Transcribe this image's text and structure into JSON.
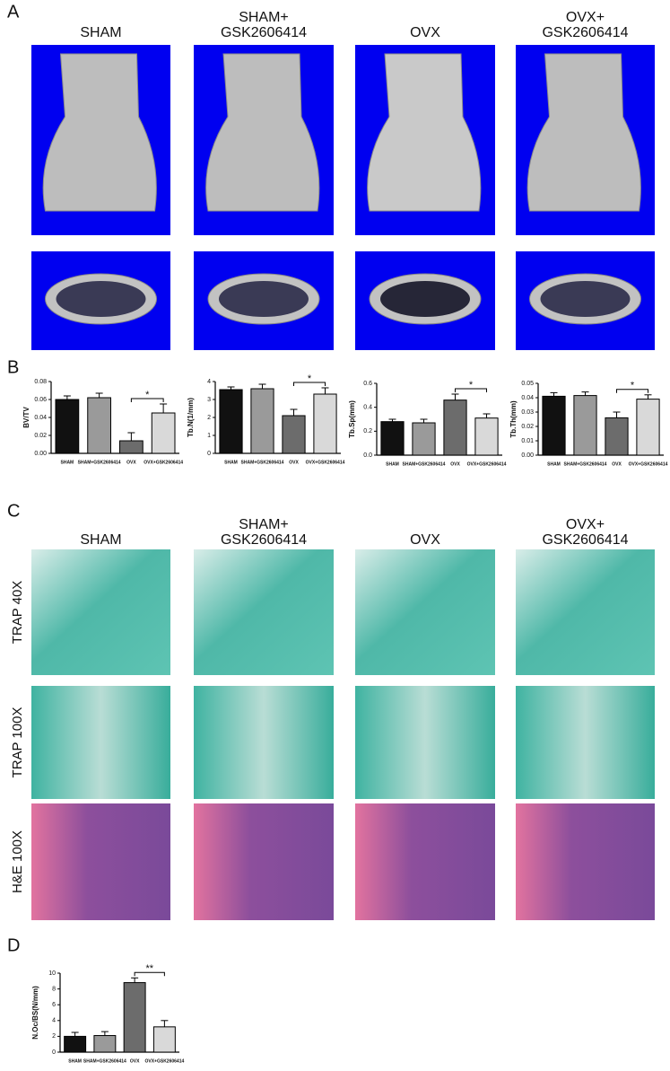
{
  "panel_a": {
    "label": "A",
    "column_titles": [
      [
        "SHAM"
      ],
      [
        "SHAM+",
        "GSK2606414"
      ],
      [
        "OVX"
      ],
      [
        "OVX+",
        "GSK2606414"
      ]
    ]
  },
  "panel_b_label": "B",
  "panel_c": {
    "label": "C",
    "column_titles": [
      [
        "SHAM"
      ],
      [
        "SHAM+",
        "GSK2606414"
      ],
      [
        "OVX"
      ],
      [
        "OVX+",
        "GSK2606414"
      ]
    ],
    "row_labels": [
      "TRAP 40X",
      "TRAP 100X",
      "H&E 100X"
    ]
  },
  "panel_d_label": "D",
  "chart_data": [
    {
      "type": "bar",
      "ylabel": "BV/TV",
      "categories": [
        "SHAM",
        "SHAM+GSK2606414",
        "OVX",
        "OVX+GSK2606414"
      ],
      "values": [
        0.06,
        0.062,
        0.014,
        0.045
      ],
      "errors": [
        0.004,
        0.005,
        0.009,
        0.01
      ],
      "colors": [
        "#111111",
        "#9a9a9a",
        "#6c6c6c",
        "#d9d9d9"
      ],
      "ylim": [
        0,
        0.08
      ],
      "yticks": [
        {
          "value": 0,
          "label": "0.00"
        },
        0.02,
        0.04,
        0.06,
        0.08
      ],
      "significance": "*"
    },
    {
      "type": "bar",
      "ylabel": "Tb.N(1/mm)",
      "categories": [
        "SHAM",
        "SHAM+GSK2606414",
        "OVX",
        "OVX+GSK2606414"
      ],
      "values": [
        3.55,
        3.6,
        2.1,
        3.3
      ],
      "errors": [
        0.15,
        0.25,
        0.35,
        0.35
      ],
      "colors": [
        "#111111",
        "#9a9a9a",
        "#6c6c6c",
        "#d9d9d9"
      ],
      "ylim": [
        0,
        4
      ],
      "yticks": [
        0,
        1,
        2,
        3,
        4
      ],
      "significance": "*"
    },
    {
      "type": "bar",
      "ylabel": "Tb.Sp(mm)",
      "categories": [
        "SHAM",
        "SHAM+GSK2606414",
        "OVX",
        "OVX+GSK2606414"
      ],
      "values": [
        0.28,
        0.27,
        0.46,
        0.31
      ],
      "errors": [
        0.02,
        0.03,
        0.05,
        0.035
      ],
      "colors": [
        "#111111",
        "#9a9a9a",
        "#6c6c6c",
        "#d9d9d9"
      ],
      "ylim": [
        0,
        0.6
      ],
      "yticks": [
        {
          "value": 0,
          "label": "0.0"
        },
        0.2,
        0.4,
        0.6
      ],
      "significance": "*"
    },
    {
      "type": "bar",
      "ylabel": "Tb.Th(mm)",
      "categories": [
        "SHAM",
        "SHAM+GSK2606414",
        "OVX",
        "OVX+GSK2606414"
      ],
      "values": [
        0.041,
        0.0415,
        0.026,
        0.039
      ],
      "errors": [
        0.0025,
        0.0025,
        0.004,
        0.003
      ],
      "colors": [
        "#111111",
        "#9a9a9a",
        "#6c6c6c",
        "#d9d9d9"
      ],
      "ylim": [
        0,
        0.05
      ],
      "yticks": [
        {
          "value": 0,
          "label": "0.00"
        },
        0.01,
        0.02,
        0.03,
        0.04,
        0.05
      ],
      "significance": "*"
    },
    {
      "type": "bar",
      "ylabel": "N.Oc/BS(N/mm)",
      "categories": [
        "SHAM",
        "SHAM+GSK2606414",
        "OVX",
        "OVX+GSK2606414"
      ],
      "values": [
        2.0,
        2.1,
        8.8,
        3.2
      ],
      "errors": [
        0.5,
        0.5,
        0.6,
        0.8
      ],
      "colors": [
        "#111111",
        "#9a9a9a",
        "#6c6c6c",
        "#d9d9d9"
      ],
      "ylim": [
        0,
        10
      ],
      "yticks": [
        0,
        2,
        4,
        6,
        8,
        10
      ],
      "significance": "**"
    }
  ]
}
